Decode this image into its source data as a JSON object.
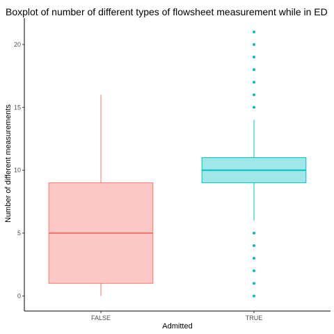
{
  "chart_data": {
    "type": "boxplot",
    "title": "Boxplot of number of different types of flowsheet measurement while in ED",
    "xlabel": "Admitted",
    "ylabel": "Number of different measurements",
    "ylim": [
      -1.2,
      22.1
    ],
    "yticks": [
      0,
      5,
      10,
      15,
      20
    ],
    "grid": false,
    "legend": "none",
    "categories": [
      "FALSE",
      "TRUE"
    ],
    "boxes": [
      {
        "name": "FALSE",
        "min": 0,
        "q1": 1,
        "median": 5,
        "q3": 9,
        "max": 16,
        "outliers": [],
        "color": "#F8766D",
        "fill": "#FCC8C5"
      },
      {
        "name": "TRUE",
        "min": 6,
        "q1": 9,
        "median": 10,
        "q3": 11,
        "max": 14,
        "outliers": [
          0,
          1,
          2,
          3,
          4,
          5,
          15,
          16,
          17,
          18,
          19,
          20,
          21
        ],
        "color": "#00BFC4",
        "fill": "#A0E7E9"
      }
    ]
  }
}
